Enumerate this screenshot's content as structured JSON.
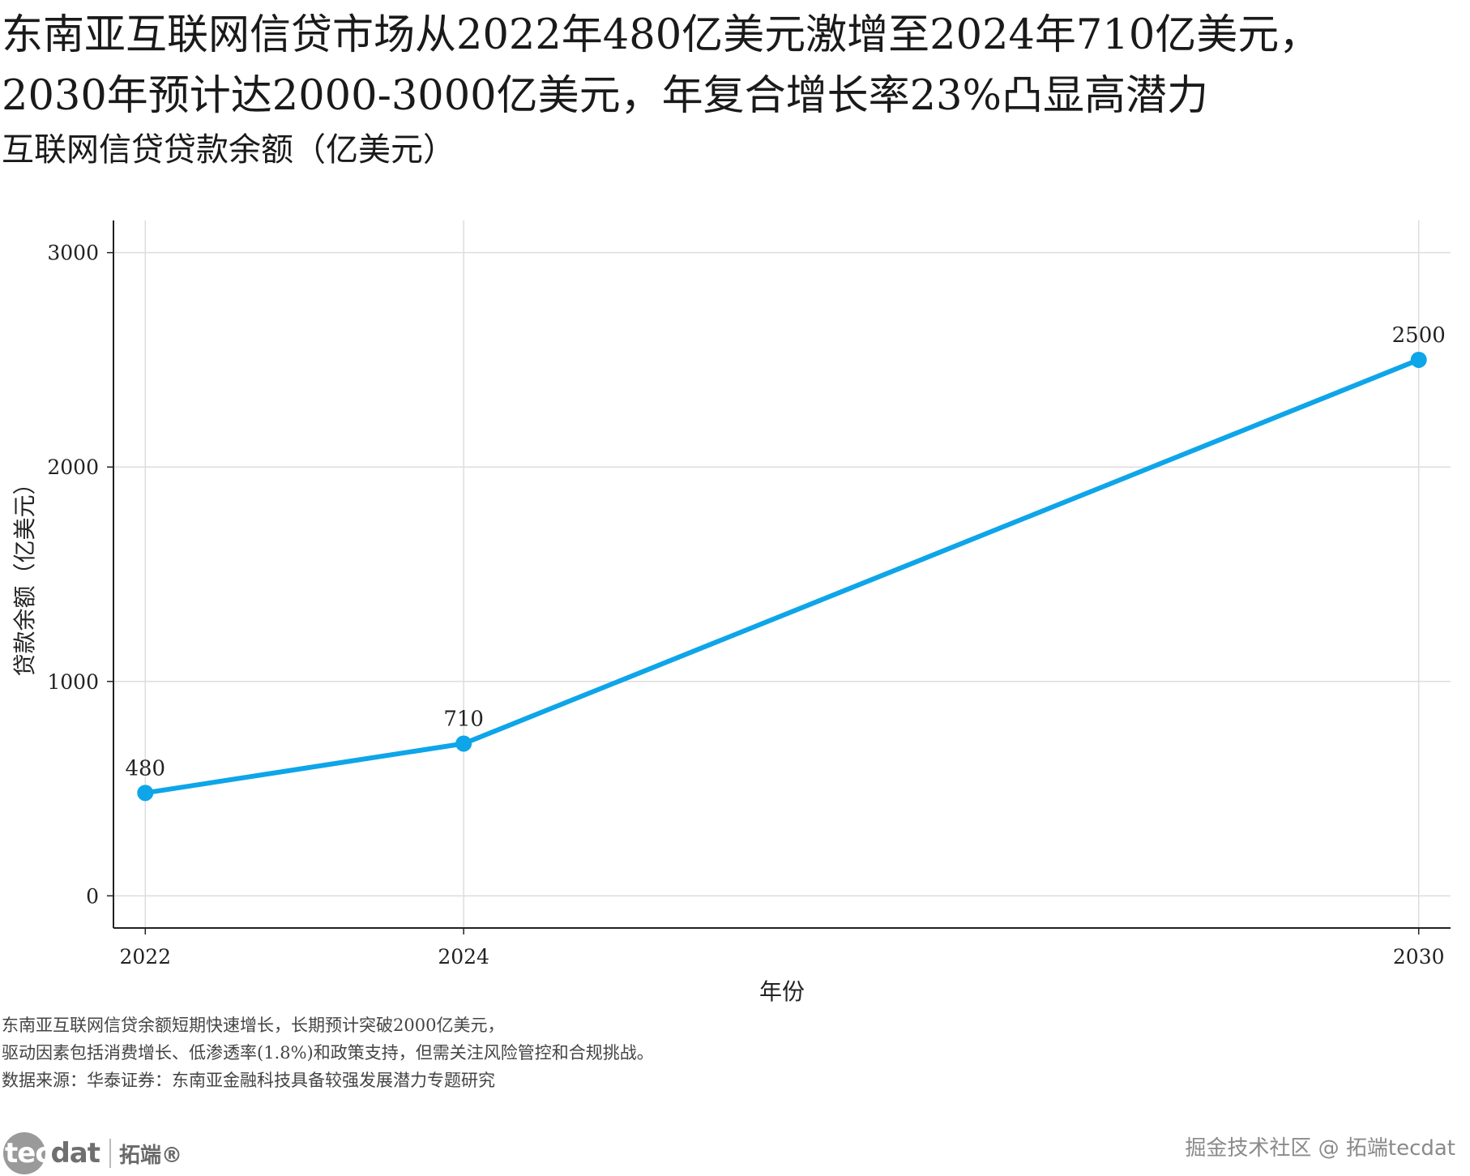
{
  "header": {
    "title_line1": "东南亚互联网信贷市场从2022年480亿美元激增至2024年710亿美元，",
    "title_line2": "2030年预计达2000-3000亿美元，年复合增长率23%凸显高潜力",
    "subtitle": "互联网信贷贷款余额（亿美元）"
  },
  "chart_data": {
    "type": "line",
    "title": "互联网信贷贷款余额（亿美元）",
    "xlabel": "年份",
    "ylabel": "贷款余额（亿美元）",
    "x": [
      2022,
      2024,
      2030
    ],
    "x_ticks": [
      "2022",
      "2024",
      "2030"
    ],
    "xlim": [
      2021.8,
      2030.2
    ],
    "series": [
      {
        "name": "贷款余额",
        "values": [
          480,
          710,
          2500
        ],
        "color": "#0ea5e9"
      }
    ],
    "data_labels": [
      "480",
      "710",
      "2500"
    ],
    "y_ticks": [
      0,
      1000,
      2000,
      3000
    ],
    "y_tick_labels": [
      "0",
      "1000",
      "2000",
      "3000"
    ],
    "ylim": [
      -150,
      3150
    ],
    "grid": true,
    "legend": "none"
  },
  "notes": {
    "line1": "东南亚互联网信贷余额短期快速增长，长期预计突破2000亿美元，",
    "line2": "驱动因素包括消费增长、低渗透率(1.8%)和政策支持，但需关注风险管控和合规挑战。",
    "source": "数据来源：华泰证券：东南亚金融科技具备较强发展潜力专题研究"
  },
  "logo": {
    "brand_tec": "tec",
    "brand_dat": "dat",
    "brand_cn": "拓端®"
  },
  "watermark": {
    "text": "掘金技术社区 @ 拓端tecdat"
  },
  "colors": {
    "line": "#0ea5e9",
    "grid": "#dddddd",
    "axis": "#222222"
  }
}
